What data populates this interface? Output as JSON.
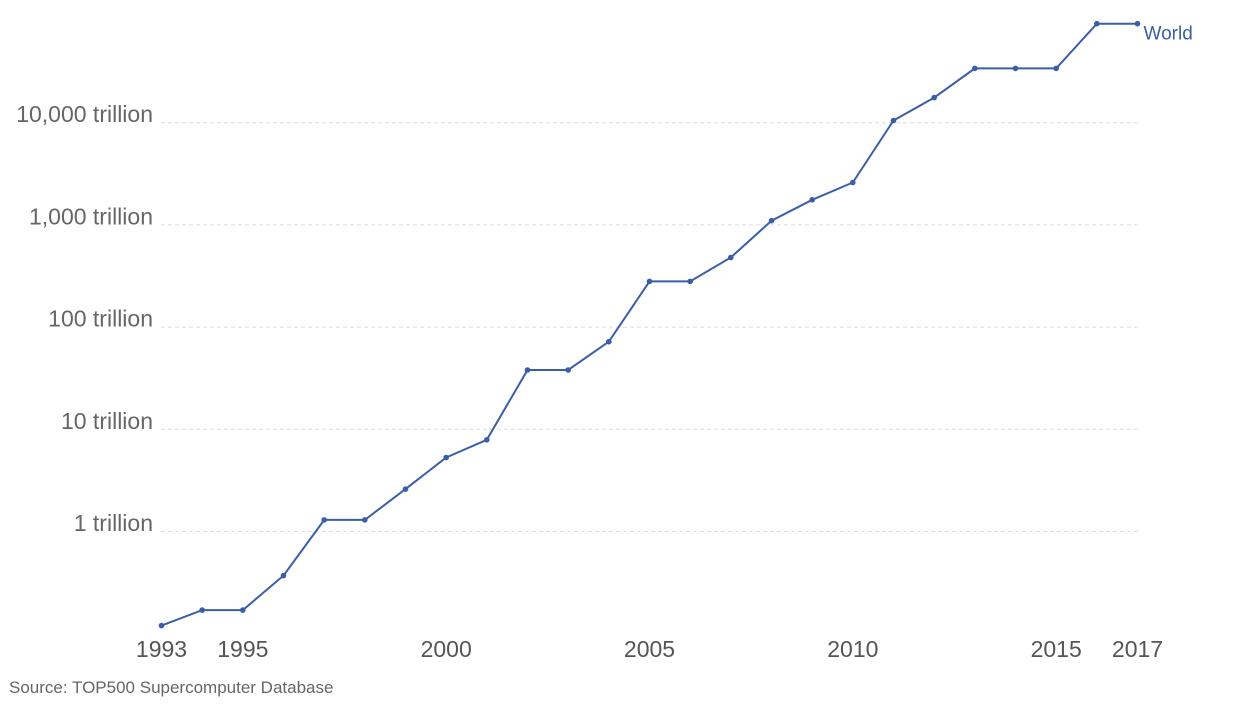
{
  "chart_data": {
    "type": "line",
    "y_scale": "log",
    "grid": true,
    "legend_placement": "inline-end",
    "title": "",
    "xlabel": "",
    "ylabel": "",
    "ylim": [
      0.1,
      50000
    ],
    "xlim": [
      1993,
      2017
    ],
    "y_ticks": [
      {
        "value": 1,
        "label": "1 trillion"
      },
      {
        "value": 10,
        "label": "10 trillion"
      },
      {
        "value": 100,
        "label": "100 trillion"
      },
      {
        "value": 1000,
        "label": "1,000 trillion"
      },
      {
        "value": 10000,
        "label": "10,000 trillion"
      }
    ],
    "x_ticks": [
      {
        "value": 1993,
        "label": "1993"
      },
      {
        "value": 1995,
        "label": "1995"
      },
      {
        "value": 2000,
        "label": "2000"
      },
      {
        "value": 2005,
        "label": "2005"
      },
      {
        "value": 2010,
        "label": "2010"
      },
      {
        "value": 2015,
        "label": "2015"
      },
      {
        "value": 2017,
        "label": "2017"
      }
    ],
    "series": [
      {
        "name": "World",
        "color": "#3a5ea8",
        "x": [
          1993,
          1994,
          1995,
          1996,
          1997,
          1998,
          1999,
          2000,
          2001,
          2002,
          2003,
          2004,
          2005,
          2006,
          2007,
          2008,
          2009,
          2010,
          2011,
          2012,
          2013,
          2014,
          2015,
          2016,
          2017
        ],
        "values": [
          0.12,
          0.17,
          0.17,
          0.37,
          1.3,
          1.3,
          2.6,
          5.3,
          7.9,
          38,
          38,
          72,
          280,
          280,
          480,
          1100,
          1760,
          2600,
          10500,
          17600,
          34000,
          34000,
          34000,
          93000,
          93000
        ]
      }
    ]
  },
  "source_text": "Source: TOP500 Supercomputer Database"
}
